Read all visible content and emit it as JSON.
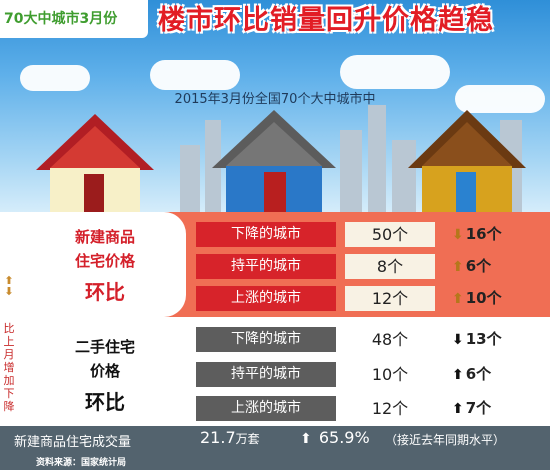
{
  "header": {
    "tag": "70大中城市3月份",
    "headline": "楼市环比销量回升价格趋稳",
    "subtitle": "2015年3月份全国70个大中城市中"
  },
  "side_caption": "比上月增加下降",
  "new_homes": {
    "label_line1": "新建商品",
    "label_line2": "住宅价格",
    "label_line3": "环比",
    "rows": [
      {
        "label": "下降的城市",
        "count": "50个",
        "change": "16个",
        "direction": "down"
      },
      {
        "label": "持平的城市",
        "count": "8个",
        "change": "6个",
        "direction": "up"
      },
      {
        "label": "上涨的城市",
        "count": "12个",
        "change": "10个",
        "direction": "up"
      }
    ]
  },
  "second_hand": {
    "label_line1": "二手住宅",
    "label_line2": "价格",
    "label_line3": "环比",
    "rows": [
      {
        "label": "下降的城市",
        "count": "48个",
        "change": "13个",
        "direction": "down"
      },
      {
        "label": "持平的城市",
        "count": "10个",
        "change": "6个",
        "direction": "up"
      },
      {
        "label": "上涨的城市",
        "count": "12个",
        "change": "7个",
        "direction": "up"
      }
    ]
  },
  "footer": {
    "label": "新建商品住宅成交量",
    "value": "21.7",
    "unit": "万套",
    "change": "65.9%",
    "note": "（接近去年同期水平）",
    "source": "资料来源：国家统计局"
  },
  "colors": {
    "headline_red": "#e21d25",
    "tag_green": "#3f9d2f",
    "band_orange": "#f06e54",
    "row_red": "#d7232a",
    "row_gray": "#5d5d5d",
    "footer_slate": "#53636e"
  }
}
